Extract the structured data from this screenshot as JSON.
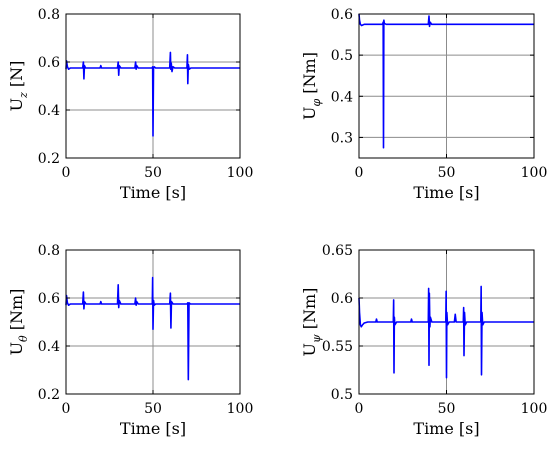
{
  "chart_data": [
    {
      "type": "line",
      "title": "",
      "xlabel": "Time [s]",
      "ylabel": {
        "main": "U",
        "sub": "z",
        "unit": " [N]"
      },
      "xlim": [
        0,
        100
      ],
      "ylim": [
        0.2,
        0.8
      ],
      "xticks": [
        "0",
        "50",
        "100"
      ],
      "yticks": [
        "0.2",
        "0.4",
        "0.6",
        "0.8"
      ],
      "grid": true,
      "series_color": "#0000ff",
      "series": [
        {
          "x": [
            0,
            0.3,
            0.8,
            1.5,
            2.5,
            9.6,
            10,
            10.3,
            10.6,
            11.2,
            12.5,
            19.6,
            20,
            20.4,
            21.5,
            29.6,
            30,
            30.3,
            30.6,
            31.5,
            39.6,
            40,
            40.3,
            40.6,
            41.5,
            49.5,
            49.8,
            50,
            50.3,
            50.7,
            51.5,
            59.6,
            60,
            60.2,
            60.5,
            60.9,
            61.5,
            62.5,
            69.5,
            69.8,
            70,
            70.3,
            70.8,
            71.8,
            100
          ],
          "y": [
            0.57,
            0.605,
            0.58,
            0.57,
            0.575,
            0.575,
            0.6,
            0.53,
            0.585,
            0.575,
            0.575,
            0.575,
            0.585,
            0.575,
            0.575,
            0.575,
            0.6,
            0.545,
            0.585,
            0.575,
            0.575,
            0.6,
            0.57,
            0.585,
            0.575,
            0.575,
            0.58,
            0.292,
            0.575,
            0.58,
            0.575,
            0.575,
            0.64,
            0.57,
            0.595,
            0.56,
            0.58,
            0.575,
            0.575,
            0.63,
            0.51,
            0.59,
            0.57,
            0.575,
            0.575
          ]
        }
      ]
    },
    {
      "type": "line",
      "title": "",
      "xlabel": "Time [s]",
      "ylabel": {
        "main": "U",
        "sub": "φ",
        "unit": " [Nm]"
      },
      "xlim": [
        0,
        100
      ],
      "ylim": [
        0.25,
        0.6
      ],
      "xticks": [
        "0",
        "50",
        "100"
      ],
      "yticks": [
        "0.3",
        "0.4",
        "0.5",
        "0.6"
      ],
      "grid": true,
      "series_color": "#0000ff",
      "series": [
        {
          "x": [
            0,
            0.3,
            0.8,
            1.5,
            3,
            13.5,
            13.8,
            14,
            14.2,
            14.5,
            15.5,
            39.6,
            40,
            40.3,
            40.7,
            41.5,
            100
          ],
          "y": [
            0.6,
            0.585,
            0.575,
            0.572,
            0.575,
            0.575,
            0.58,
            0.275,
            0.585,
            0.577,
            0.575,
            0.575,
            0.595,
            0.57,
            0.58,
            0.575,
            0.575
          ]
        }
      ]
    },
    {
      "type": "line",
      "title": "",
      "xlabel": "Time [s]",
      "ylabel": {
        "main": "U",
        "sub": "θ",
        "unit": " [Nm]"
      },
      "xlim": [
        0,
        100
      ],
      "ylim": [
        0.2,
        0.8
      ],
      "xticks": [
        "0",
        "50",
        "100"
      ],
      "yticks": [
        "0.2",
        "0.4",
        "0.6",
        "0.8"
      ],
      "grid": true,
      "series_color": "#0000ff",
      "series": [
        {
          "x": [
            0,
            0.3,
            0.8,
            1.5,
            2.5,
            9.6,
            10,
            10.3,
            10.6,
            11.5,
            19.6,
            20,
            20.4,
            21.5,
            29.6,
            30,
            30.3,
            30.6,
            31.5,
            39.6,
            40,
            40.3,
            40.6,
            41.5,
            49.6,
            49.8,
            50,
            50.3,
            50.7,
            51.5,
            59.6,
            60,
            60.3,
            60.6,
            61.5,
            69.6,
            70,
            70.3,
            70.7,
            71.5,
            100
          ],
          "y": [
            0.57,
            0.61,
            0.58,
            0.57,
            0.575,
            0.575,
            0.625,
            0.555,
            0.585,
            0.575,
            0.575,
            0.585,
            0.575,
            0.575,
            0.575,
            0.655,
            0.56,
            0.59,
            0.575,
            0.575,
            0.6,
            0.57,
            0.585,
            0.575,
            0.575,
            0.685,
            0.47,
            0.59,
            0.57,
            0.575,
            0.575,
            0.62,
            0.475,
            0.585,
            0.575,
            0.575,
            0.58,
            0.26,
            0.58,
            0.575,
            0.575
          ]
        }
      ]
    },
    {
      "type": "line",
      "title": "",
      "xlabel": "Time [s]",
      "ylabel": {
        "main": "U",
        "sub": "ψ",
        "unit": " [Nm]"
      },
      "xlim": [
        0,
        100
      ],
      "ylim": [
        0.5,
        0.65
      ],
      "xticks": [
        "0",
        "50",
        "100"
      ],
      "yticks": [
        "0.5",
        "0.55",
        "0.6",
        "0.65"
      ],
      "grid": true,
      "series_color": "#0000ff",
      "series": [
        {
          "x": [
            0,
            0.3,
            0.8,
            1.3,
            2,
            3,
            5,
            9.6,
            10,
            10.4,
            11.5,
            19.6,
            19.8,
            20,
            20.2,
            20.5,
            21.5,
            29.6,
            30,
            30.4,
            31.5,
            39.6,
            39.8,
            40,
            40.2,
            40.5,
            40.8,
            41.6,
            42.5,
            49.6,
            49.8,
            50,
            50.2,
            50.6,
            51.5,
            54.5,
            55,
            55.5,
            59.6,
            59.8,
            60,
            60.3,
            60.7,
            61.5,
            69.6,
            69.8,
            70,
            70.3,
            70.7,
            71.5,
            100
          ],
          "y": [
            0.6,
            0.585,
            0.572,
            0.57,
            0.572,
            0.574,
            0.575,
            0.575,
            0.578,
            0.575,
            0.575,
            0.575,
            0.598,
            0.522,
            0.58,
            0.572,
            0.575,
            0.575,
            0.578,
            0.575,
            0.575,
            0.575,
            0.61,
            0.53,
            0.605,
            0.57,
            0.58,
            0.575,
            0.575,
            0.575,
            0.607,
            0.517,
            0.585,
            0.572,
            0.575,
            0.575,
            0.583,
            0.575,
            0.575,
            0.59,
            0.54,
            0.585,
            0.572,
            0.575,
            0.575,
            0.612,
            0.52,
            0.585,
            0.572,
            0.575,
            0.575
          ]
        }
      ]
    }
  ]
}
